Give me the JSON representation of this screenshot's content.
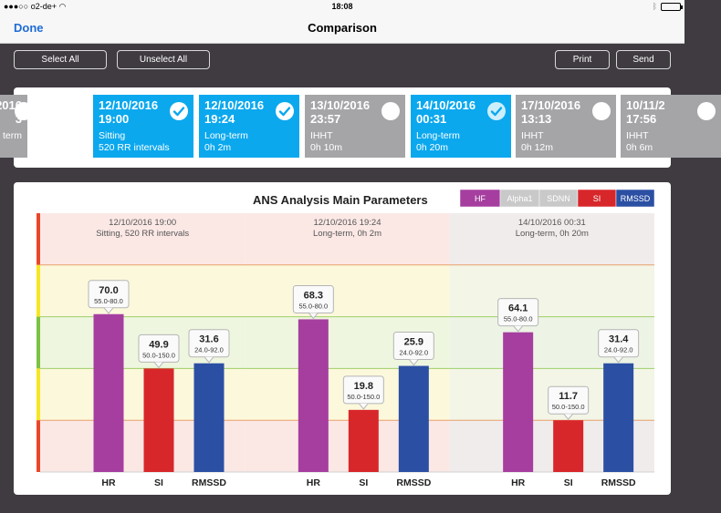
{
  "status": {
    "carrier": "o2-de+",
    "time": "18:08"
  },
  "nav": {
    "done": "Done",
    "title": "Comparison"
  },
  "toolbar": {
    "select_all": "Select All",
    "unselect_all": "Unselect All",
    "print": "Print",
    "send": "Send"
  },
  "cards": [
    {
      "date": "/2016",
      "time": "3",
      "type": "term",
      "detail": "",
      "selected": false,
      "partial": true
    },
    {
      "date": "12/10/2016",
      "time": "19:00",
      "type": "Sitting",
      "detail": "520 RR intervals",
      "selected": true
    },
    {
      "date": "12/10/2016",
      "time": "19:24",
      "type": "Long-term",
      "detail": "0h 2m",
      "selected": true
    },
    {
      "date": "13/10/2016",
      "time": "23:57",
      "type": "IHHT",
      "detail": "0h 10m",
      "selected": false
    },
    {
      "date": "14/10/2016",
      "time": "00:31",
      "type": "Long-term",
      "detail": "0h 20m",
      "selected": true,
      "faded_check": true
    },
    {
      "date": "17/10/2016",
      "time": "13:13",
      "type": "IHHT",
      "detail": "0h 12m",
      "selected": false
    },
    {
      "date": "10/11/2",
      "time": "17:56",
      "type": "IHHT",
      "detail": "0h 6m",
      "selected": false,
      "partial": true
    }
  ],
  "chart_data": {
    "type": "bar",
    "title": "ANS Analysis Main Parameters",
    "legend": [
      {
        "label": "HF",
        "color": "#a63ea0"
      },
      {
        "label": "Alpha1",
        "color": "#c9c9c9"
      },
      {
        "label": "SDNN",
        "color": "#c9c9c9"
      },
      {
        "label": "SI",
        "color": "#d8272b"
      },
      {
        "label": "RMSSD",
        "color": "#2b4fa3"
      }
    ],
    "categories": [
      "HR",
      "SI",
      "RMSSD"
    ],
    "groups": [
      {
        "label": "12/10/2016 19:00",
        "sublabel": "Sitting, 520 RR intervals",
        "values": [
          70.0,
          49.9,
          31.6
        ],
        "ranges": [
          "55.0-80.0",
          "50.0-150.0",
          "24.0-92.0"
        ]
      },
      {
        "label": "12/10/2016 19:24",
        "sublabel": "Long-term, 0h 2m",
        "values": [
          68.3,
          19.8,
          25.9
        ],
        "ranges": [
          "55.0-80.0",
          "50.0-150.0",
          "24.0-92.0"
        ]
      },
      {
        "label": "14/10/2016 00:31",
        "sublabel": "Long-term, 0h 20m",
        "values": [
          64.1,
          11.7,
          31.4
        ],
        "ranges": [
          "55.0-80.0",
          "50.0-150.0",
          "24.0-92.0"
        ]
      }
    ],
    "bar_colors": [
      "#a63ea0",
      "#d8272b",
      "#2b4fa3"
    ],
    "bar_levels": [
      0.61,
      0.4,
      0.42,
      0.59,
      0.24,
      0.41,
      0.54,
      0.2,
      0.42
    ],
    "zone_colors": [
      "#e8472b",
      "#f6e623",
      "#7cc242",
      "#f6e623",
      "#e8472b"
    ]
  }
}
